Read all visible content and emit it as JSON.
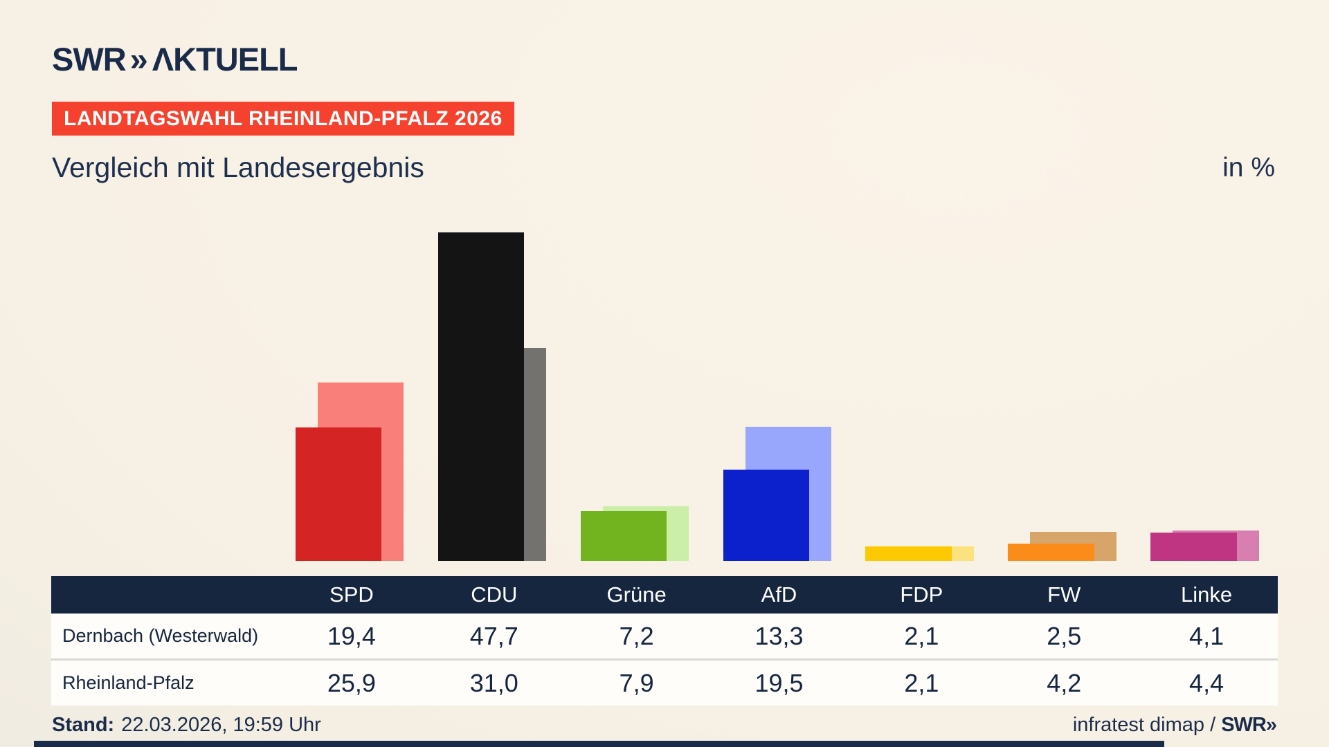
{
  "header": {
    "logo_swr": "SWR",
    "logo_chevrons": "»",
    "logo_suffix": "ΛKTUELL",
    "banner": "LANDTAGSWAHL RHEINLAND-PFALZ 2026"
  },
  "title": "Vergleich mit Landesergebnis",
  "unit": "in %",
  "chart_data": {
    "type": "bar",
    "title": "Vergleich mit Landesergebnis",
    "unit_label": "in %",
    "categories": [
      "SPD",
      "CDU",
      "Grüne",
      "AfD",
      "FDP",
      "FW",
      "Linke"
    ],
    "series": [
      {
        "name": "Dernbach (Westerwald)",
        "values": [
          19.4,
          47.7,
          7.2,
          13.3,
          2.1,
          2.5,
          4.1
        ]
      },
      {
        "name": "Rheinland-Pfalz",
        "values": [
          25.9,
          31.0,
          7.9,
          19.5,
          2.1,
          4.2,
          4.4
        ]
      }
    ],
    "colors": {
      "front": [
        "#d42423",
        "#141414",
        "#72b41f",
        "#0c20cb",
        "#fdc900",
        "#fb8c19",
        "#c03582"
      ],
      "back": [
        "#f9807a",
        "#74726f",
        "#cbefa9",
        "#98a7fb",
        "#fbe27f",
        "#d7a469",
        "#d77fb0"
      ]
    },
    "ylim": [
      0,
      50
    ],
    "grid": false,
    "legend_position": "table-below-chart",
    "note": "front bars = Dernbach (Westerwald), offset lighter back bars = Rheinland-Pfalz"
  },
  "table": {
    "columns": [
      "SPD",
      "CDU",
      "Grüne",
      "AfD",
      "FDP",
      "FW",
      "Linke"
    ],
    "rows": [
      {
        "label": "Dernbach (Westerwald)",
        "values": [
          "19,4",
          "47,7",
          "7,2",
          "13,3",
          "2,1",
          "2,5",
          "4,1"
        ]
      },
      {
        "label": "Rheinland-Pfalz",
        "values": [
          "25,9",
          "31,0",
          "7,9",
          "19,5",
          "2,1",
          "4,2",
          "4,4"
        ]
      }
    ]
  },
  "footer": {
    "stand_label": "Stand:",
    "stand_value": "22.03.2026, 19:59 Uhr",
    "credit_text": "infratest dimap / ",
    "credit_logo": "SWR»"
  },
  "colors": {
    "navy": "#15263e",
    "text_navy": "#1b2c4a",
    "banner_red": "#f5422f",
    "background_beige": "#f7f0e4",
    "row_white": "#fffdf9",
    "bottom_bar_navy": "#1b2b4a"
  }
}
